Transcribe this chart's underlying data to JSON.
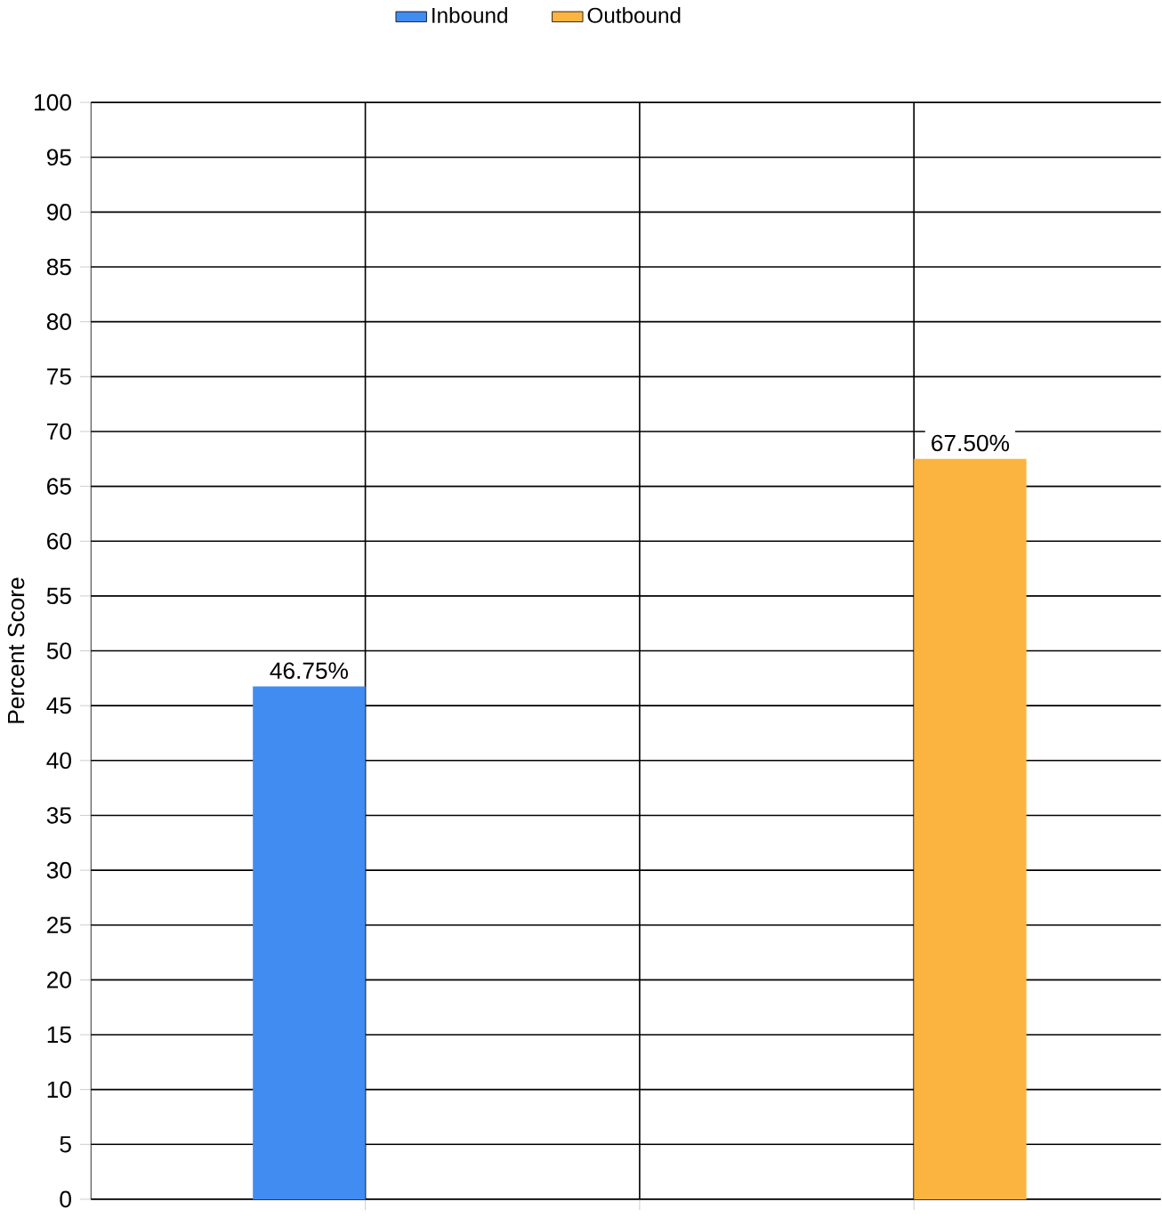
{
  "chart_data": {
    "type": "bar",
    "ylabel": "Percent Score",
    "categories": [
      null,
      null
    ],
    "series": [
      {
        "name": "Inbound",
        "color": "#418cf0",
        "values": [
          46.75,
          null
        ],
        "value_labels": [
          "46.75%",
          null
        ]
      },
      {
        "name": "Outbound",
        "color": "#fcb441",
        "values": [
          null,
          67.5
        ],
        "value_labels": [
          null,
          "67.50%"
        ]
      }
    ],
    "ylim": [
      0,
      100
    ],
    "yticks": [
      0,
      5,
      10,
      15,
      20,
      25,
      30,
      35,
      40,
      45,
      50,
      55,
      60,
      65,
      70,
      75,
      80,
      85,
      90,
      95,
      100
    ],
    "grid": true,
    "legend": "top"
  }
}
